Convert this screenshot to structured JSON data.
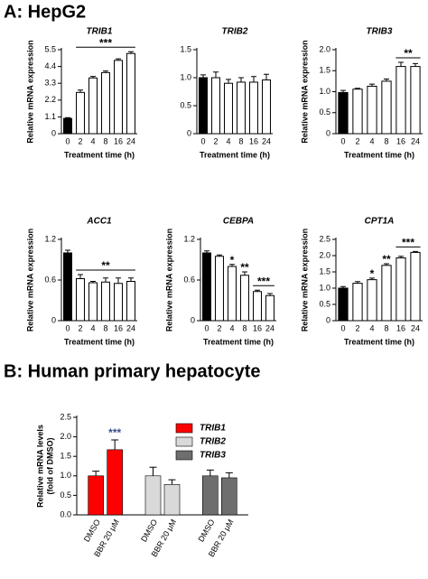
{
  "panel_a_title": "A: HepG2",
  "panel_b_title": "B: Human primary hepatocyte",
  "chart_data": [
    {
      "type": "bar",
      "title": "TRIB1",
      "ylabel": "Relative mRNA expression",
      "xlabel": "Treatment time (h)",
      "categories": [
        "0",
        "2",
        "4",
        "8",
        "16",
        "24"
      ],
      "values": [
        1.0,
        2.7,
        3.65,
        4.0,
        4.8,
        5.25
      ],
      "errors": [
        0.05,
        0.15,
        0.1,
        0.1,
        0.1,
        0.12
      ],
      "colors": [
        "#000000",
        "#ffffff",
        "#ffffff",
        "#ffffff",
        "#ffffff",
        "#ffffff"
      ],
      "ylim": [
        0,
        5.5
      ],
      "yticks": [
        0,
        1.1,
        2.2,
        3.3,
        4.4,
        5.5
      ],
      "annotations": [
        {
          "text": "***",
          "span": [
            "2",
            "24"
          ]
        }
      ]
    },
    {
      "type": "bar",
      "title": "TRIB2",
      "xlabel": "Treatment time (h)",
      "categories": [
        "0",
        "2",
        "4",
        "8",
        "16",
        "24"
      ],
      "values": [
        1.0,
        1.0,
        0.9,
        0.92,
        0.92,
        0.96
      ],
      "errors": [
        0.05,
        0.1,
        0.07,
        0.08,
        0.1,
        0.1
      ],
      "colors": [
        "#000000",
        "#ffffff",
        "#ffffff",
        "#ffffff",
        "#ffffff",
        "#ffffff"
      ],
      "ylim": [
        0,
        1.5
      ],
      "yticks": [
        0,
        0.5,
        {
          "value": 1,
          "label": "1.0"
        },
        1.5
      ],
      "annotations": []
    },
    {
      "type": "bar",
      "title": "TRIB3",
      "ylabel": "Relative mRNA expression",
      "xlabel": "Treatment time (h)",
      "categories": [
        "0",
        "2",
        "4",
        "8",
        "16",
        "24"
      ],
      "values": [
        0.98,
        1.06,
        1.13,
        1.25,
        1.6,
        1.6
      ],
      "errors": [
        0.05,
        0.02,
        0.05,
        0.05,
        0.1,
        0.07
      ],
      "colors": [
        "#000000",
        "#ffffff",
        "#ffffff",
        "#ffffff",
        "#ffffff",
        "#ffffff"
      ],
      "ylim": [
        0,
        2
      ],
      "yticks": [
        0,
        0.5,
        {
          "value": 1,
          "label": "1.0"
        },
        1.5,
        {
          "value": 2,
          "label": "2.0"
        }
      ],
      "annotations": [
        {
          "text": "**",
          "span": [
            "16",
            "24"
          ]
        }
      ]
    },
    {
      "type": "bar",
      "title": "ACC1",
      "ylabel": "Relative mRNA expression",
      "xlabel": "Treatment time (h)",
      "categories": [
        "0",
        "2",
        "4",
        "8",
        "16",
        "24"
      ],
      "values": [
        1.0,
        0.62,
        0.56,
        0.57,
        0.55,
        0.58
      ],
      "errors": [
        0.04,
        0.06,
        0.02,
        0.06,
        0.08,
        0.05
      ],
      "colors": [
        "#000000",
        "#ffffff",
        "#ffffff",
        "#ffffff",
        "#ffffff",
        "#ffffff"
      ],
      "ylim": [
        0,
        1.2
      ],
      "yticks": [
        0,
        0.6,
        1.2
      ],
      "annotations": [
        {
          "text": "**",
          "span": [
            "2",
            "24"
          ]
        }
      ]
    },
    {
      "type": "bar",
      "title": "CEBPA",
      "ylabel": "Relative mRNA expression",
      "xlabel": "Treatment time (h)",
      "categories": [
        "0",
        "2",
        "4",
        "8",
        "16",
        "24"
      ],
      "values": [
        1.0,
        0.95,
        0.8,
        0.67,
        0.43,
        0.37
      ],
      "errors": [
        0.03,
        0.02,
        0.03,
        0.05,
        0.02,
        0.03
      ],
      "colors": [
        "#000000",
        "#ffffff",
        "#ffffff",
        "#ffffff",
        "#ffffff",
        "#ffffff"
      ],
      "ylim": [
        0,
        1.2
      ],
      "yticks": [
        0,
        0.6,
        1.2
      ],
      "annotations": [
        {
          "text": "*",
          "span": [
            "4"
          ]
        },
        {
          "text": "**",
          "span": [
            "8"
          ]
        },
        {
          "text": "***",
          "span": [
            "16",
            "24"
          ]
        }
      ]
    },
    {
      "type": "bar",
      "title": "CPT1A",
      "ylabel": "Relative mRNA expression",
      "xlabel": "Treatment time (h)",
      "categories": [
        "0",
        "2",
        "4",
        "8",
        "16",
        "24"
      ],
      "values": [
        1.0,
        1.15,
        1.26,
        1.7,
        1.93,
        2.1
      ],
      "errors": [
        0.05,
        0.05,
        0.05,
        0.05,
        0.05,
        0.03
      ],
      "colors": [
        "#000000",
        "#ffffff",
        "#ffffff",
        "#ffffff",
        "#ffffff",
        "#ffffff"
      ],
      "ylim": [
        0,
        2.5
      ],
      "yticks": [
        0,
        0.5,
        {
          "value": 1,
          "label": "1.0"
        },
        1.5,
        {
          "value": 2,
          "label": "2.0"
        },
        2.5
      ],
      "annotations": [
        {
          "text": "*",
          "span": [
            "4"
          ]
        },
        {
          "text": "**",
          "span": [
            "8"
          ]
        },
        {
          "text": "***",
          "span": [
            "16",
            "24"
          ]
        }
      ]
    },
    {
      "type": "grouped_bar",
      "ylabel": [
        "Relative mRNA levels",
        "(fold of DMSO)"
      ],
      "categories": [
        "DMSO",
        "BBR 20 μM"
      ],
      "series": [
        {
          "name": "TRIB1",
          "color": "#ff0000",
          "values": [
            1.0,
            1.67
          ],
          "errors": [
            0.12,
            0.25
          ]
        },
        {
          "name": "TRIB2",
          "color": "#d9d9d9",
          "values": [
            1.0,
            0.78
          ],
          "errors": [
            0.22,
            0.12
          ]
        },
        {
          "name": "TRIB3",
          "color": "#6e6e6e",
          "values": [
            1.0,
            0.95
          ],
          "errors": [
            0.15,
            0.13
          ]
        }
      ],
      "ylim": [
        0,
        2.5
      ],
      "yticks": [
        {
          "value": 0,
          "label": "0.0"
        },
        0.5,
        {
          "value": 1,
          "label": "1.0"
        },
        1.5,
        {
          "value": 2,
          "label": "2.0"
        },
        2.5
      ],
      "legend": "top-right",
      "annotations": [
        {
          "text": "***",
          "series": "TRIB1",
          "category": "BBR 20 μM",
          "color": "#3a4a8c"
        }
      ]
    }
  ]
}
